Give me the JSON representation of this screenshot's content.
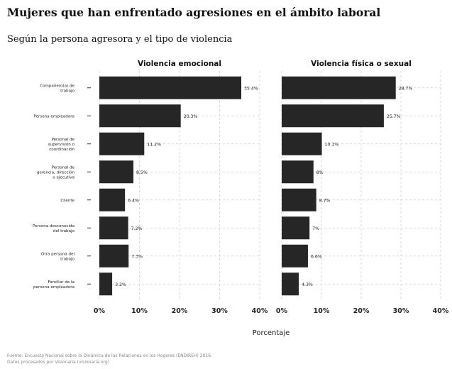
{
  "header": {
    "title": "Mujeres que han enfrentado agresiones en el ámbito laboral",
    "subtitle": "Según la persona agresora y el tipo de violencia"
  },
  "footer": {
    "source_line1": "Fuente: Encuesta Nacional sobre la Dinámica de las Relaciones en los Hogares (ENDIREH) 2016.",
    "source_line2": "Datos procesados por Visionaria (visionaria.org)"
  },
  "colors": {
    "bar": "#262626",
    "grid": "#cfcfcf",
    "background": "#ffffff"
  },
  "chart_data": [
    {
      "type": "bar",
      "orientation": "horizontal",
      "title": "Violencia emocional",
      "xlabel": "Porcentaje",
      "xlim": [
        0,
        40
      ],
      "xticks": [
        "0%",
        "10%",
        "20%",
        "30%",
        "40%"
      ],
      "grid": true,
      "categories": [
        "Compañero(a) de trabajo",
        "Persona empleadora",
        "Personal de supervisión o coordinación",
        "Personal de gerencia, dirección o ejecutiva",
        "Cliente",
        "Persona desconocida del trabajo",
        "Otra persona del trabajo",
        "Familiar de la persona empleadora"
      ],
      "values": [
        35.4,
        20.3,
        11.2,
        8.5,
        6.4,
        7.2,
        7.3,
        3.2
      ],
      "value_labels": [
        "35.4%",
        "20.3%",
        "11.2%",
        "8.5%",
        "6.4%",
        "7.2%",
        "7.3%",
        "3.2%"
      ]
    },
    {
      "type": "bar",
      "orientation": "horizontal",
      "title": "Violencia física o sexual",
      "xlabel": "Porcentaje",
      "xlim": [
        0,
        40
      ],
      "xticks": [
        "0%",
        "10%",
        "20%",
        "30%",
        "40%"
      ],
      "grid": true,
      "categories": [
        "Compañero(a) de trabajo",
        "Persona empleadora",
        "Personal de supervisión o coordinación",
        "Personal de gerencia, dirección o ejecutiva",
        "Cliente",
        "Persona desconocida del trabajo",
        "Otra persona del trabajo",
        "Familiar de la persona empleadora"
      ],
      "values": [
        28.7,
        25.7,
        10.1,
        8,
        8.7,
        7,
        6.6,
        4.3
      ],
      "value_labels": [
        "28.7%",
        "25.7%",
        "10.1%",
        "8%",
        "8.7%",
        "7%",
        "6.6%",
        "4.3%"
      ]
    }
  ]
}
